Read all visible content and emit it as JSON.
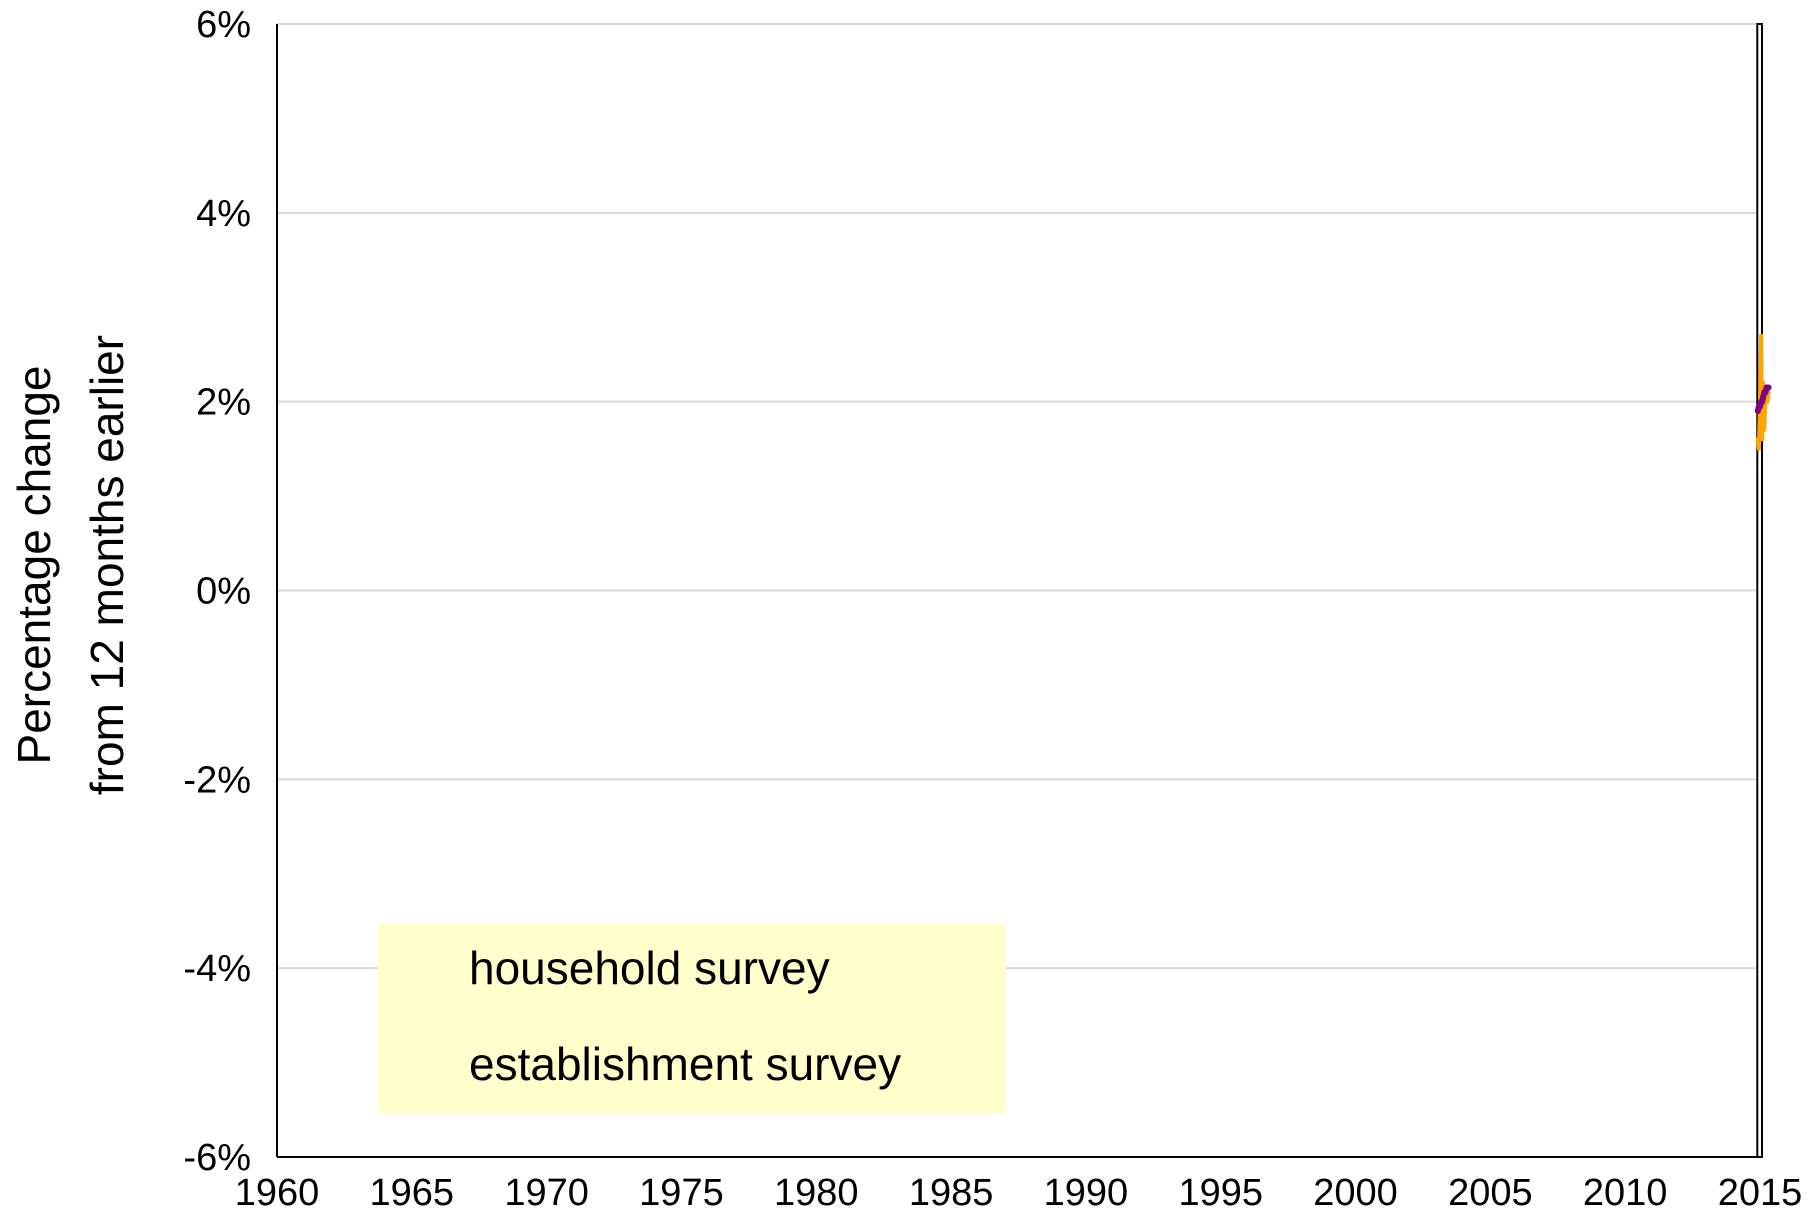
{
  "chart_data": {
    "type": "line",
    "ylabel": [
      "Percentage change",
      "from 12 months earlier"
    ],
    "xlim": [
      1960,
      2015
    ],
    "ylim": [
      -6,
      6
    ],
    "x_ticks": [
      1960,
      1965,
      1970,
      1975,
      1980,
      1985,
      1990,
      1995,
      2000,
      2005,
      2010,
      2015
    ],
    "x_tick_labels": [
      "1960",
      "1965",
      "1970",
      "1975",
      "1980",
      "1985",
      "1990",
      "1995",
      "2000",
      "2005",
      "2010",
      "2015"
    ],
    "y_ticks": [
      -6,
      -4,
      -2,
      0,
      2,
      4,
      6
    ],
    "y_tick_labels": [
      "-6%",
      "-4%",
      "-2%",
      "0%",
      "2%",
      "4%",
      "6%"
    ],
    "grid": true,
    "highlight_band": [
      2014.9,
      2015.4
    ],
    "legend": {
      "placement": "bottom-left",
      "background": "#ffffcc",
      "entries": [
        "household survey",
        "establishment survey"
      ]
    },
    "series": [
      {
        "name": "household survey",
        "color": "#ffa500",
        "points": [
          [
            2014.92,
            1.6
          ],
          [
            2014.96,
            1.5
          ],
          [
            2015.0,
            2.0
          ],
          [
            2015.04,
            2.7
          ],
          [
            2015.08,
            1.6
          ],
          [
            2015.12,
            2.2
          ],
          [
            2015.16,
            1.7
          ],
          [
            2015.2,
            2.1
          ],
          [
            2015.24,
            2.0
          ],
          [
            2015.28,
            2.0
          ],
          [
            2015.32,
            2.1
          ]
        ]
      },
      {
        "name": "establishment survey",
        "color": "#800080",
        "points": [
          [
            2014.92,
            1.9
          ],
          [
            2014.96,
            1.95
          ],
          [
            2015.0,
            1.95
          ],
          [
            2015.04,
            2.0
          ],
          [
            2015.08,
            2.0
          ],
          [
            2015.12,
            2.05
          ],
          [
            2015.16,
            2.1
          ],
          [
            2015.2,
            2.1
          ],
          [
            2015.24,
            2.15
          ],
          [
            2015.28,
            2.15
          ],
          [
            2015.32,
            2.15
          ]
        ]
      }
    ]
  }
}
